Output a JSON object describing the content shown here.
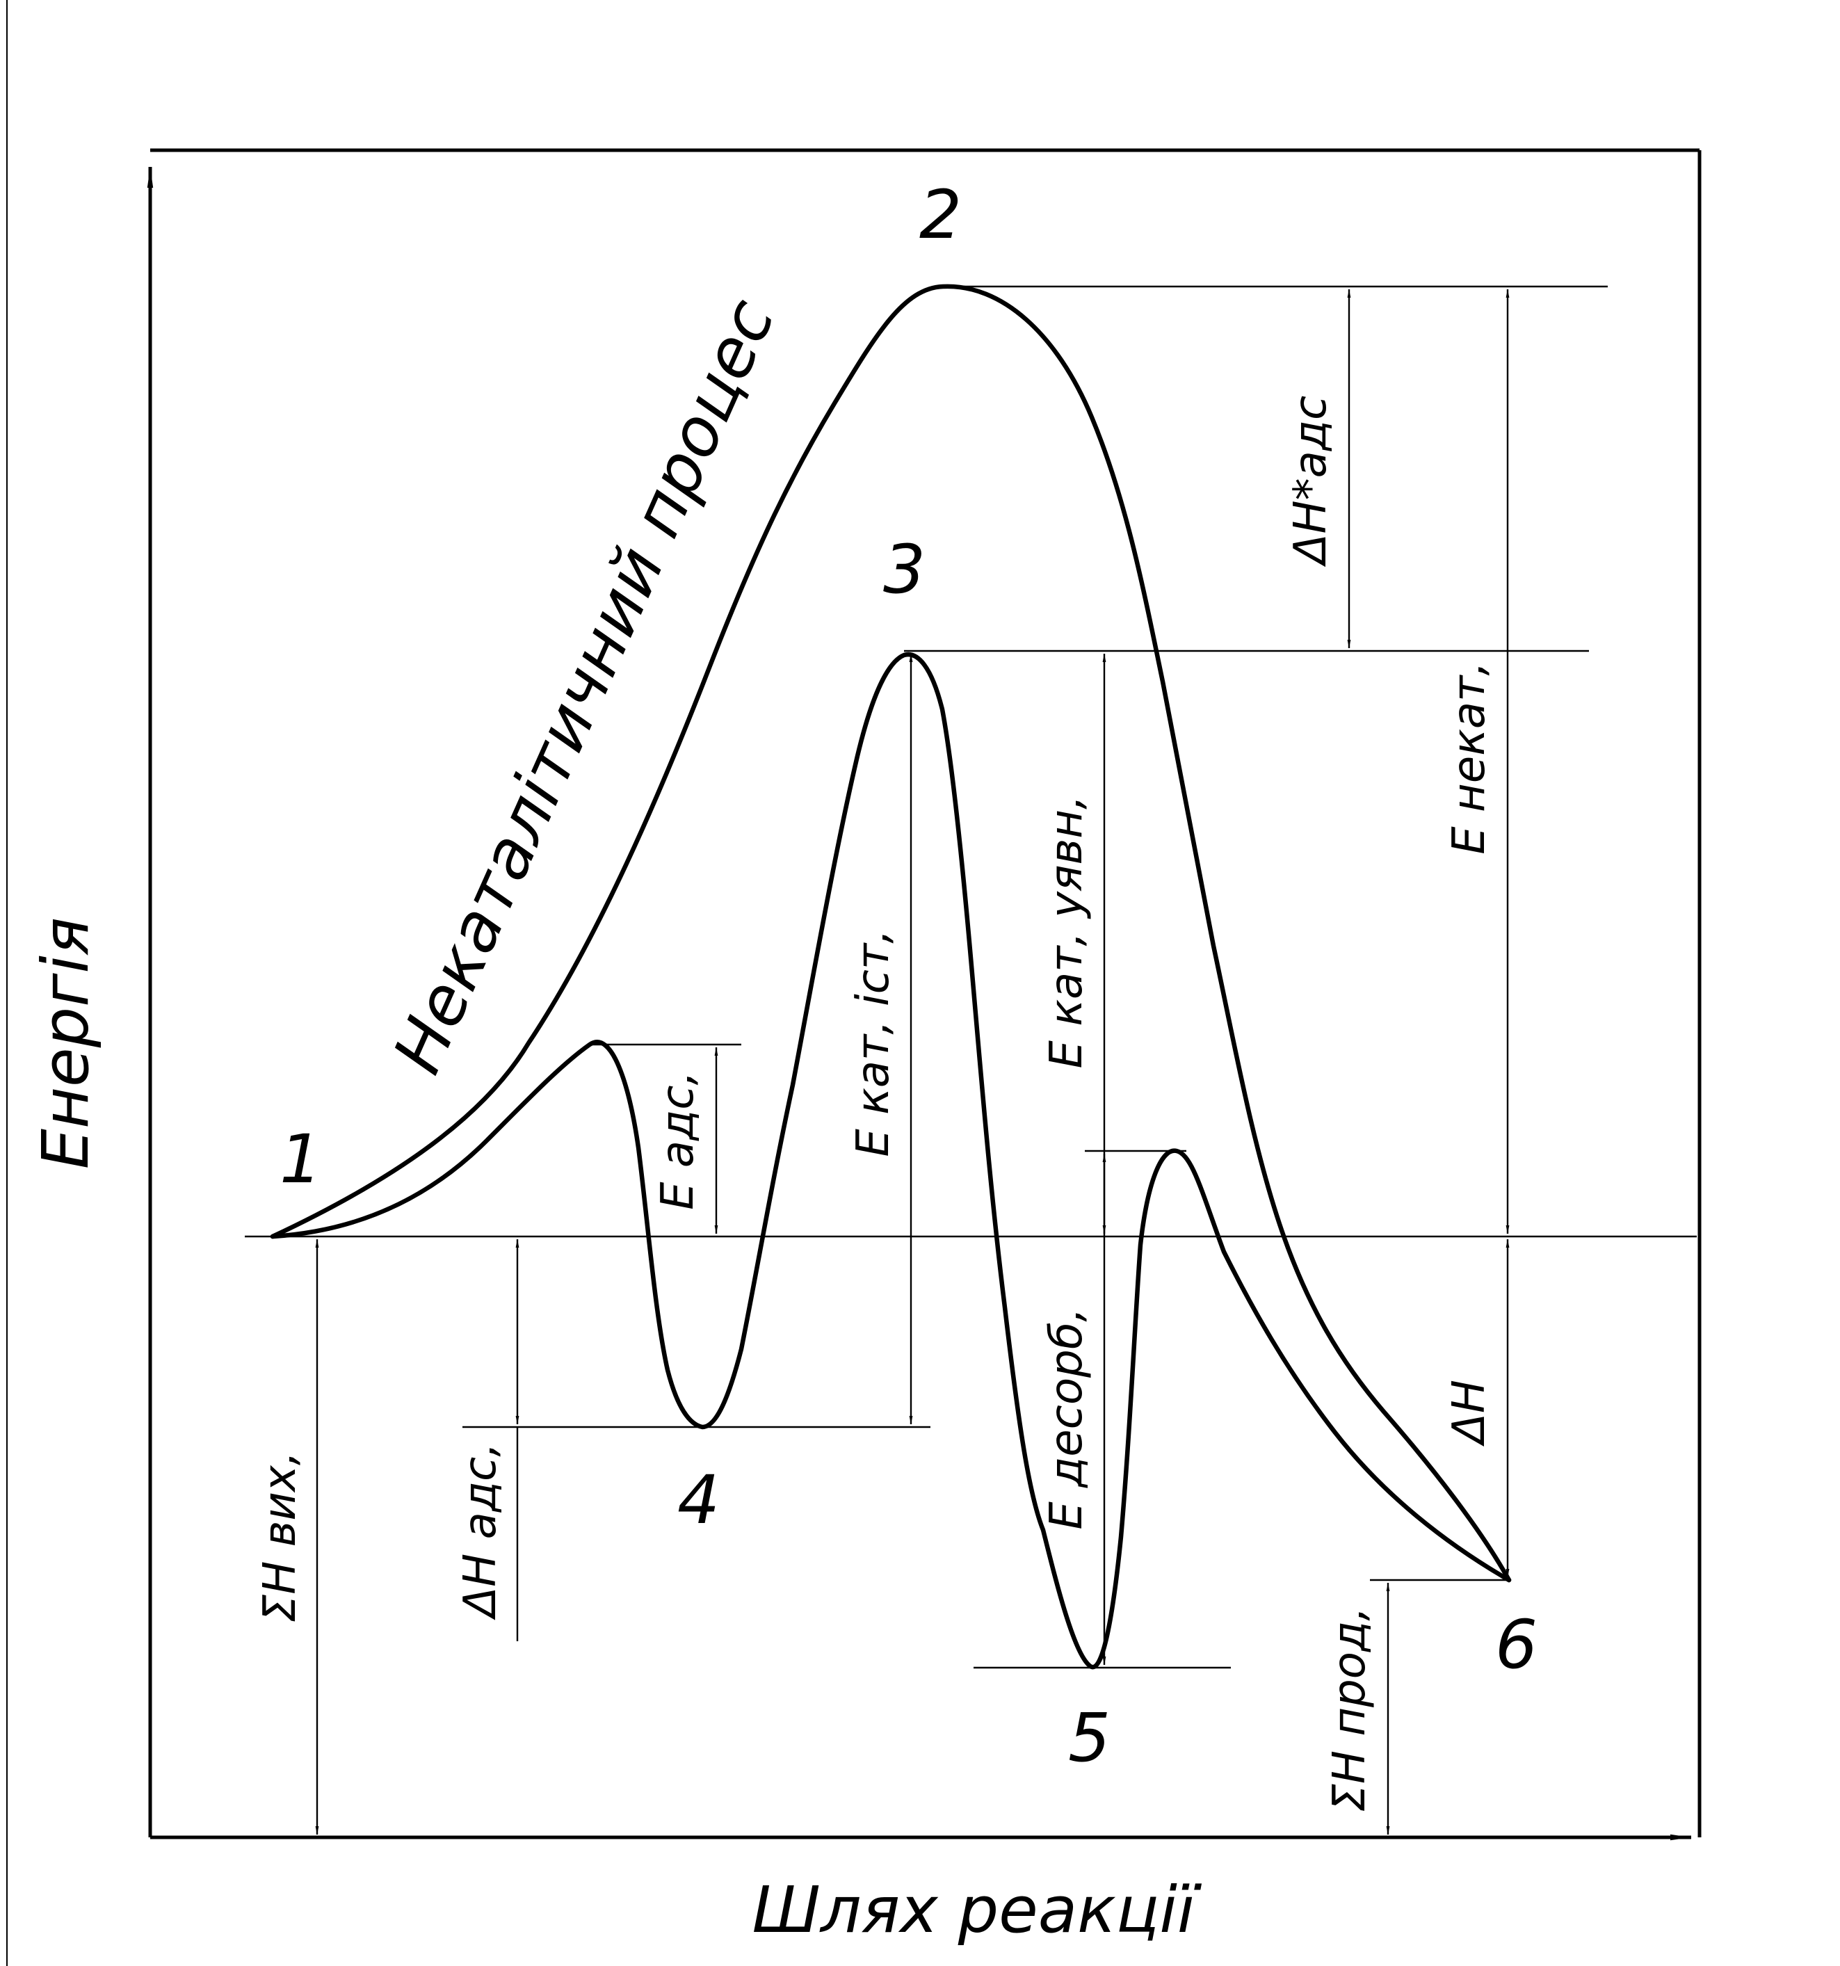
{
  "axes": {
    "y_title": "Енергія",
    "x_title": "Шлях реакції"
  },
  "curve_label": "Некаталітичний процес",
  "points": [
    "1",
    "2",
    "3",
    "4",
    "5",
    "6"
  ],
  "dimensions": {
    "dh_ads_star": "ΔH*адс",
    "e_nekat": "E некат,",
    "e_kat_uyavn": "E кат, уявн,",
    "e_kat_ist": "E кат, іст,",
    "e_ads": "E адс,",
    "e_desorb": "E десорб,",
    "dh": "ΔH",
    "dh_ads": "ΔH адс,",
    "sum_h_vyh": "ΣH вих,",
    "sum_h_prod": "ΣH  прод,"
  }
}
